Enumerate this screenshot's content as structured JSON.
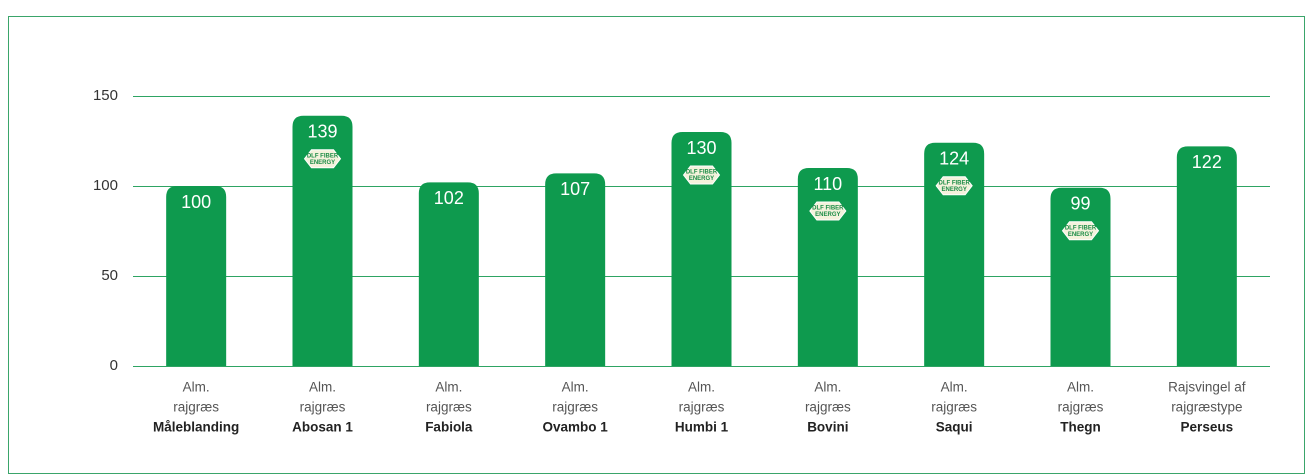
{
  "chart_data": {
    "type": "bar",
    "categories": [
      [
        "Alm.",
        "rajgræs",
        "Måleblanding"
      ],
      [
        "Alm.",
        "rajgræs",
        "Abosan 1"
      ],
      [
        "Alm.",
        "rajgræs",
        "Fabiola"
      ],
      [
        "Alm.",
        "rajgræs",
        "Ovambo 1"
      ],
      [
        "Alm.",
        "rajgræs",
        "Humbi 1"
      ],
      [
        "Alm.",
        "rajgræs",
        "Bovini"
      ],
      [
        "Alm.",
        "rajgræs",
        "Saqui"
      ],
      [
        "Alm.",
        "rajgræs",
        "Thegn"
      ],
      [
        "Rajsvingel af",
        "rajgræstype",
        "Perseus"
      ]
    ],
    "values": [
      100,
      139,
      102,
      107,
      130,
      110,
      124,
      99,
      122
    ],
    "color": "#0e9a4e",
    "badge_label": [
      "DLF FIBER",
      "ENERGY"
    ],
    "badged": [
      false,
      true,
      false,
      false,
      true,
      true,
      true,
      true,
      false
    ],
    "ylim": [
      0,
      150
    ],
    "yticks": [
      0,
      50,
      100,
      150
    ],
    "grid": true
  }
}
